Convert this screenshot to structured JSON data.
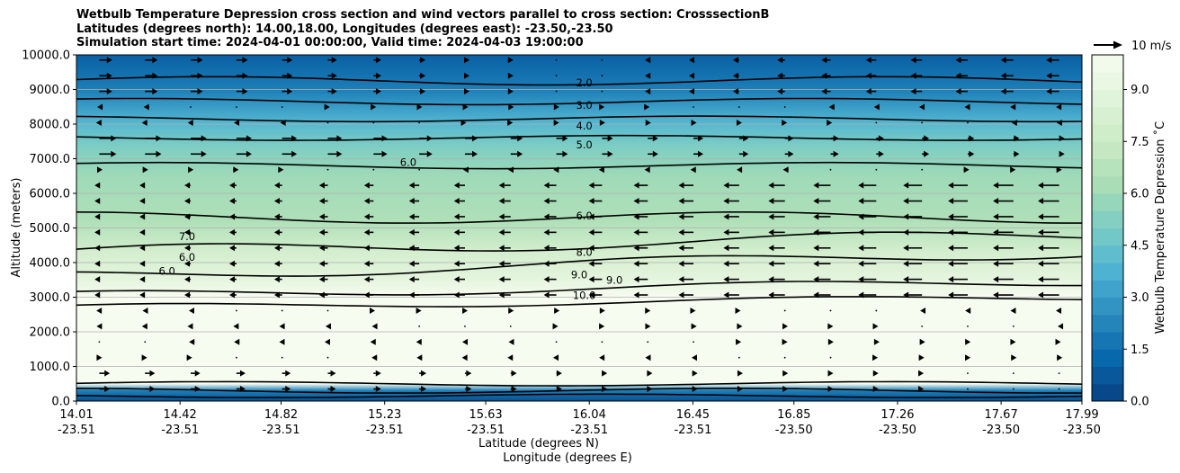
{
  "chart_data": {
    "type": "heatmap",
    "title_lines": [
      "Wetbulb Temperature Depression cross section and wind vectors parallel to cross section: CrosssectionB",
      "Latitudes (degrees north): 14.00,18.00, Longitudes (degrees east): -23.50,-23.50",
      "Simulation start time: 2024-04-01 00:00:00, Valid time: 2024-04-03 19:00:00"
    ],
    "ylabel": "Altitude (meters)",
    "xlabel_lat": "Latitude (degrees N)",
    "xlabel_lon": "Longitude (degrees E)",
    "ylim": [
      0,
      10000
    ],
    "y_ticks": [
      "0.0",
      "1000.0",
      "2000.0",
      "3000.0",
      "4000.0",
      "5000.0",
      "6000.0",
      "7000.0",
      "8000.0",
      "9000.0",
      "10000.0"
    ],
    "x_ticks": [
      {
        "lat": "14.01",
        "lon": "-23.51"
      },
      {
        "lat": "14.42",
        "lon": "-23.51"
      },
      {
        "lat": "14.82",
        "lon": "-23.51"
      },
      {
        "lat": "15.23",
        "lon": "-23.51"
      },
      {
        "lat": "15.63",
        "lon": "-23.51"
      },
      {
        "lat": "16.04",
        "lon": "-23.51"
      },
      {
        "lat": "16.45",
        "lon": "-23.51"
      },
      {
        "lat": "16.85",
        "lon": "-23.50"
      },
      {
        "lat": "17.26",
        "lon": "-23.50"
      },
      {
        "lat": "17.67",
        "lon": "-23.50"
      },
      {
        "lat": "17.99",
        "lon": "-23.50"
      }
    ],
    "grid": "horizontal",
    "colorbar": {
      "label": "Wetbulb Temperature Depression ˚C",
      "range": [
        0,
        10
      ],
      "ticks": [
        "0.0",
        "1.5",
        "3.0",
        "4.5",
        "6.0",
        "7.5",
        "9.0"
      ],
      "colors": [
        "#084081",
        "#0868ac",
        "#2b8cbe",
        "#4eb3d3",
        "#7bccc4",
        "#a8ddb5",
        "#ccebc5",
        "#e0f3db",
        "#f7fcf0"
      ]
    },
    "contour_labels": [
      "2.0",
      "3.0",
      "4.0",
      "5.0",
      "6.0",
      "8.0",
      "9.0",
      "9.0",
      "10.0",
      "6.0",
      "7.0",
      "6.0",
      "6.0"
    ],
    "vector_key": {
      "label": "10 m/s",
      "speed": 10
    },
    "depression_profile": [
      {
        "alt": 10000,
        "value": 1.0
      },
      {
        "alt": 9000,
        "value": 2.0
      },
      {
        "alt": 8500,
        "value": 3.0
      },
      {
        "alt": 8000,
        "value": 4.0
      },
      {
        "alt": 7400,
        "value": 5.0
      },
      {
        "alt": 6500,
        "value": 6.0
      },
      {
        "alt": 5200,
        "value": 6.5
      },
      {
        "alt": 4300,
        "value": 8.0
      },
      {
        "alt": 3500,
        "value": 9.0
      },
      {
        "alt": 3000,
        "value": 10.0
      },
      {
        "alt": 500,
        "value": 10.0
      },
      {
        "alt": 300,
        "value": 2.0
      },
      {
        "alt": 0,
        "value": 0.5
      }
    ]
  }
}
